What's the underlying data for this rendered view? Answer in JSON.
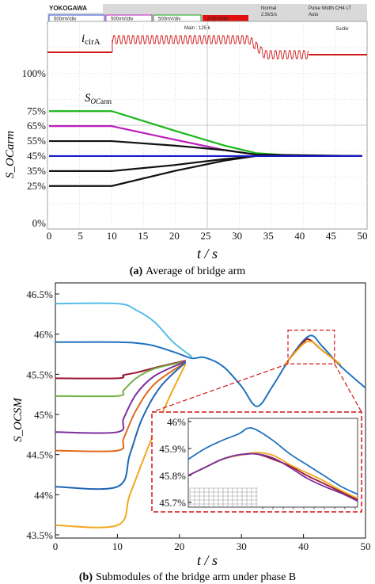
{
  "chart_data": [
    {
      "type": "line",
      "caption_label": "(a)",
      "caption_text": "Average of bridge arm",
      "xlabel": "t / s",
      "ylabel": "S_OCarm",
      "xlim": [
        0,
        50
      ],
      "ylim": [
        0,
        100
      ],
      "xticks": [
        "0",
        "5",
        "10",
        "15",
        "20",
        "25",
        "30",
        "35",
        "40",
        "45",
        "50"
      ],
      "yticks": [
        {
          "label": "0%",
          "v": 0
        },
        {
          "label": "25%",
          "v": 25
        },
        {
          "label": "35%",
          "v": 35
        },
        {
          "label": "45%",
          "v": 45
        },
        {
          "label": "55%",
          "v": 55
        },
        {
          "label": "65%",
          "v": 65
        },
        {
          "label": "75%",
          "v": 75
        },
        {
          "label": "100%",
          "v": 100
        }
      ],
      "grid": true,
      "annotations": {
        "icir_main": "i",
        "icir_sub": "cirA",
        "soc_main": "S",
        "soc_sub_oc": "OC",
        "soc_sub_arm": "arm"
      },
      "scope_header": {
        "brand": "YOKOGAWA",
        "mode": "Normal",
        "rate": "2.5kS/s",
        "trigger": "Pulse Width CH4 LT",
        "trigger_mode": "Auto",
        "channels": [
          "500mV/div",
          "500mV/div",
          "500mV/div",
          "2.00 V/div"
        ],
        "main_label": "Main : 125 k",
        "timebase": "5s/div"
      },
      "series": [
        {
          "color": "#19b619",
          "points": [
            [
              0,
              75
            ],
            [
              10,
              75
            ],
            [
              20,
              62
            ],
            [
              28,
              52
            ],
            [
              33,
              47
            ],
            [
              40,
              45
            ],
            [
              50,
              45
            ]
          ]
        },
        {
          "color": "#bb1fbb",
          "points": [
            [
              0,
              65
            ],
            [
              10,
              65
            ],
            [
              20,
              56
            ],
            [
              28,
              49
            ],
            [
              33,
              46
            ],
            [
              40,
              45
            ],
            [
              50,
              45
            ]
          ]
        },
        {
          "color": "#111111",
          "points": [
            [
              0,
              55
            ],
            [
              10,
              55
            ],
            [
              20,
              52
            ],
            [
              28,
              49
            ],
            [
              33,
              46
            ],
            [
              50,
              45
            ]
          ]
        },
        {
          "color": "#111111",
          "points": [
            [
              0,
              35
            ],
            [
              10,
              35
            ],
            [
              20,
              39
            ],
            [
              28,
              43
            ],
            [
              33,
              45
            ],
            [
              50,
              45
            ]
          ]
        },
        {
          "color": "#111111",
          "points": [
            [
              0,
              25
            ],
            [
              10,
              25
            ],
            [
              20,
              35
            ],
            [
              28,
              42
            ],
            [
              33,
              45
            ],
            [
              50,
              45
            ]
          ]
        },
        {
          "color": "#1b1bc8",
          "points": [
            [
              0,
              45
            ],
            [
              10,
              45
            ],
            [
              50,
              45
            ]
          ]
        }
      ]
    },
    {
      "type": "line",
      "caption_label": "(b)",
      "caption_text": "Submodules of the bridge arm under phase B",
      "xlabel": "t / s",
      "ylabel": "S_OCSM",
      "xlim": [
        0,
        50
      ],
      "ylim": [
        43.5,
        46.5
      ],
      "xticks": [
        "0",
        "10",
        "20",
        "30",
        "40",
        "50"
      ],
      "yticks": [
        "43.5%",
        "44%",
        "44.5%",
        "45%",
        "45.5%",
        "46%",
        "46.5%"
      ],
      "grid": false,
      "inset": {
        "xlim": [
          37,
          47
        ],
        "ylim": [
          45.7,
          46.0
        ],
        "yticks": [
          "45.7%",
          "45.8%",
          "45.9%",
          "46%"
        ],
        "zoom_box_x": [
          37.5,
          45
        ],
        "zoom_box_y": [
          45.63,
          46.05
        ]
      },
      "series": [
        {
          "color": "#56bde8",
          "points": [
            [
              0,
              46.38
            ],
            [
              10,
              46.38
            ],
            [
              13,
              46.3
            ],
            [
              16,
              46.15
            ],
            [
              19,
              45.9
            ],
            [
              22,
              45.72
            ]
          ]
        },
        {
          "color": "#2072be",
          "points": [
            [
              0,
              45.9
            ],
            [
              10,
              45.9
            ],
            [
              15,
              45.87
            ],
            [
              19,
              45.78
            ],
            [
              22,
              45.7
            ],
            [
              24,
              45.71
            ],
            [
              27,
              45.6
            ],
            [
              30,
              45.35
            ],
            [
              32.5,
              45.1
            ],
            [
              35,
              45.35
            ],
            [
              38,
              45.72
            ],
            [
              41,
              45.98
            ],
            [
              43,
              45.85
            ],
            [
              46,
              45.6
            ],
            [
              50,
              45.33
            ]
          ]
        },
        {
          "color": "#9b1530",
          "points": [
            [
              0,
              45.45
            ],
            [
              10,
              45.45
            ],
            [
              11,
              45.49
            ],
            [
              13,
              45.52
            ],
            [
              17,
              45.6
            ],
            [
              21,
              45.67
            ]
          ]
        },
        {
          "color": "#70b043",
          "points": [
            [
              0,
              45.23
            ],
            [
              10,
              45.23
            ],
            [
              11,
              45.3
            ],
            [
              13,
              45.45
            ],
            [
              16,
              45.57
            ],
            [
              21,
              45.66
            ]
          ]
        },
        {
          "color": "#7a2f9f",
          "points": [
            [
              0,
              44.78
            ],
            [
              10,
              44.78
            ],
            [
              11,
              44.95
            ],
            [
              13,
              45.25
            ],
            [
              16,
              45.48
            ],
            [
              21,
              45.66
            ]
          ]
        },
        {
          "color": "#e06a1c",
          "points": [
            [
              0,
              44.55
            ],
            [
              10,
              44.55
            ],
            [
              11,
              44.7
            ],
            [
              13,
              45.05
            ],
            [
              16,
              45.38
            ],
            [
              21,
              45.65
            ]
          ]
        },
        {
          "color": "#1f66b5",
          "points": [
            [
              0,
              44.1
            ],
            [
              10,
              44.1
            ],
            [
              12,
              44.5
            ],
            [
              14,
              44.95
            ],
            [
              17,
              45.35
            ],
            [
              21,
              45.65
            ]
          ]
        },
        {
          "color": "#f2a81c",
          "points": [
            [
              0,
              43.62
            ],
            [
              10,
              43.62
            ],
            [
              12,
              44.0
            ],
            [
              15,
              44.6
            ],
            [
              18,
              45.15
            ],
            [
              21,
              45.63
            ]
          ]
        },
        {
          "color": "#9b1530",
          "points": [
            [
              37,
              45.62
            ],
            [
              40,
              45.9
            ],
            [
              41,
              45.93
            ],
            [
              43,
              45.8
            ],
            [
              46,
              45.62
            ]
          ]
        },
        {
          "color": "#f2a81c",
          "points": [
            [
              37,
              45.62
            ],
            [
              40,
              45.88
            ],
            [
              41.5,
              45.9
            ],
            [
              43,
              45.8
            ],
            [
              46,
              45.62
            ]
          ]
        }
      ],
      "inset_series": [
        {
          "color": "#2072be",
          "points": [
            [
              37,
              45.86
            ],
            [
              38,
              45.9
            ],
            [
              39,
              45.93
            ],
            [
              40,
              45.955
            ],
            [
              40.5,
              45.975
            ],
            [
              41,
              45.97
            ],
            [
              42,
              45.93
            ],
            [
              43,
              45.88
            ],
            [
              44,
              45.84
            ],
            [
              45,
              45.8
            ],
            [
              46,
              45.76
            ],
            [
              47,
              45.73
            ]
          ]
        },
        {
          "color": "#9b1530",
          "points": [
            [
              37,
              45.8
            ],
            [
              38,
              45.83
            ],
            [
              39,
              45.86
            ],
            [
              40,
              45.875
            ],
            [
              41,
              45.88
            ],
            [
              42,
              45.86
            ],
            [
              43,
              45.835
            ],
            [
              44,
              45.8
            ],
            [
              45,
              45.77
            ],
            [
              46,
              45.74
            ],
            [
              47,
              45.71
            ]
          ]
        },
        {
          "color": "#f2a81c",
          "points": [
            [
              37,
              45.8
            ],
            [
              38,
              45.83
            ],
            [
              39,
              45.86
            ],
            [
              40,
              45.875
            ],
            [
              41,
              45.885
            ],
            [
              42,
              45.875
            ],
            [
              43,
              45.84
            ],
            [
              44,
              45.81
            ],
            [
              45,
              45.78
            ],
            [
              46,
              45.745
            ],
            [
              47,
              45.715
            ]
          ]
        },
        {
          "color": "#7a2f9f",
          "points": [
            [
              37,
              45.8
            ],
            [
              38,
              45.83
            ],
            [
              39,
              45.86
            ],
            [
              40,
              45.877
            ],
            [
              41,
              45.88
            ],
            [
              42,
              45.865
            ],
            [
              43,
              45.83
            ],
            [
              44,
              45.79
            ],
            [
              45,
              45.76
            ],
            [
              46,
              45.735
            ],
            [
              47,
              45.705
            ]
          ]
        }
      ]
    }
  ]
}
